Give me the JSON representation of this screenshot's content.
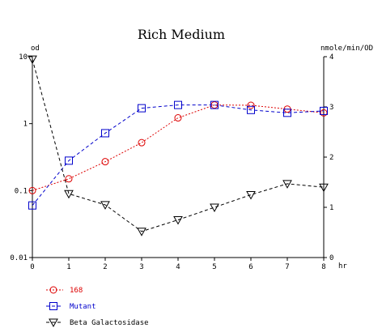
{
  "chart_data": {
    "type": "line",
    "title": "Rich Medium",
    "x": [
      0,
      1,
      2,
      3,
      4,
      5,
      6,
      7,
      8
    ],
    "x_ticks": [
      "0",
      "1",
      "2",
      "3",
      "4",
      "5",
      "6",
      "7",
      "8"
    ],
    "xlabel": "hr",
    "xlim": [
      0,
      8
    ],
    "y_left": {
      "label": "od",
      "scale": "log",
      "ylim": [
        0.01,
        10
      ],
      "ticks": [
        "0.01",
        "0.1",
        "1",
        "10"
      ]
    },
    "y_right": {
      "label": "nmole/min/OD",
      "scale": "linear",
      "ylim": [
        0,
        4
      ],
      "ticks": [
        "0",
        "1",
        "2",
        "3",
        "4"
      ]
    },
    "grid": false,
    "legend": "bottom-left",
    "series": [
      {
        "name": "168",
        "axis": "left",
        "marker": "circle",
        "color": "#dd0000",
        "line_style": "dotted",
        "values": [
          0.1,
          0.15,
          0.27,
          0.52,
          1.22,
          1.9,
          1.88,
          1.65,
          1.45
        ]
      },
      {
        "name": "Mutant",
        "axis": "left",
        "marker": "square",
        "color": "#0000cc",
        "line_style": "dashed",
        "values": [
          0.06,
          0.28,
          0.72,
          1.7,
          1.9,
          1.9,
          1.6,
          1.45,
          1.55
        ]
      },
      {
        "name": "Beta Galactosidase",
        "axis": "right",
        "marker": "triangle-down",
        "color": "#000000",
        "line_style": "dashed",
        "values": [
          3.95,
          1.27,
          1.05,
          0.52,
          0.75,
          1.0,
          1.25,
          1.47,
          1.4
        ]
      }
    ]
  }
}
